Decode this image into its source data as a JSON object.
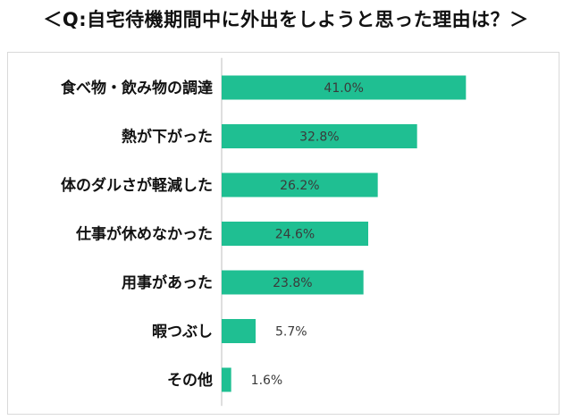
{
  "chart_data": {
    "type": "bar",
    "orientation": "horizontal",
    "title": "＜Q:自宅待機期間中に外出をしようと思った理由は？＞",
    "categories": [
      "食べ物・飲み物の調達",
      "熱が下がった",
      "体のダルさが軽減した",
      "仕事が休めなかった",
      "用事があった",
      "暇つぶし",
      "その他"
    ],
    "values": [
      41.0,
      32.8,
      26.2,
      24.6,
      23.8,
      5.7,
      1.6
    ],
    "value_labels": [
      "41.0%",
      "32.8%",
      "26.2%",
      "24.6%",
      "23.8%",
      "5.7%",
      "1.6%"
    ],
    "unit": "%",
    "xlim": [
      0,
      45
    ],
    "bar_color": "#1fbf92",
    "grid": false,
    "legend": "none"
  }
}
